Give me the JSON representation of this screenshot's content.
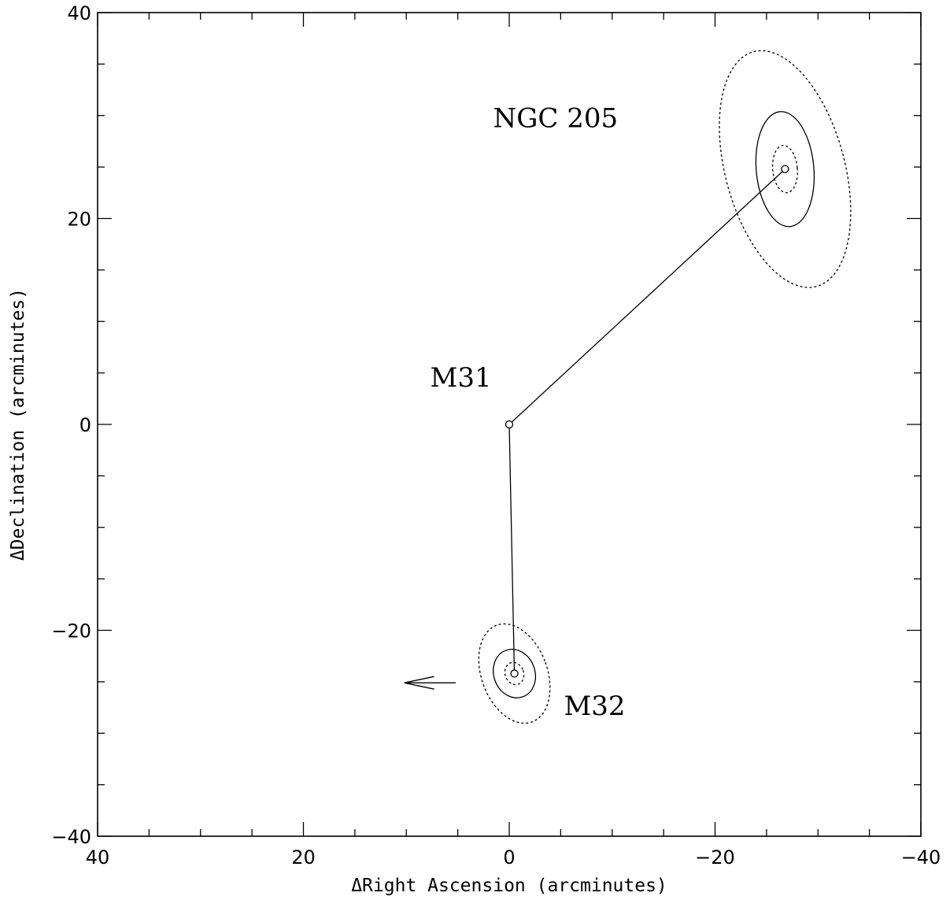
{
  "chart_data": {
    "type": "scatter",
    "title": "",
    "xlabel": "ΔRight Ascension (arcminutes)",
    "ylabel": "ΔDeclination (arcminutes)",
    "xlim": [
      40,
      -40
    ],
    "ylim": [
      -40,
      40
    ],
    "x_major_ticks": [
      40,
      20,
      0,
      -20,
      -40
    ],
    "x_tick_labels": [
      "40",
      "20",
      "0",
      "−20",
      "−40"
    ],
    "y_major_ticks": [
      -40,
      -20,
      0,
      20,
      40
    ],
    "y_tick_labels": [
      "−40",
      "−20",
      "0",
      "20",
      "40"
    ],
    "minor_tick_step": 5,
    "grid": false,
    "center": {
      "name": "M31",
      "x": 0,
      "y": 0,
      "label_x": 4.7,
      "label_y": 4.6
    },
    "galaxies": [
      {
        "name": "NGC 205",
        "x": -26.8,
        "y": 24.8,
        "label_x": -4.5,
        "label_y": 29.8,
        "isophotes": [
          {
            "style": "dotted",
            "a": 11.8,
            "b": 5.8,
            "angle": -15
          },
          {
            "style": "solid",
            "a": 5.6,
            "b": 2.8,
            "angle": -5
          },
          {
            "style": "dotted",
            "a": 2.3,
            "b": 1.2,
            "angle": -5
          }
        ]
      },
      {
        "name": "M32",
        "x": -0.5,
        "y": -24.2,
        "label_x": -8.3,
        "label_y": -27.3,
        "isophotes": [
          {
            "style": "dotted",
            "a": 5.0,
            "b": 3.2,
            "angle": -20
          },
          {
            "style": "solid",
            "a": 2.4,
            "b": 2.0,
            "angle": -20
          },
          {
            "style": "dotted",
            "a": 1.1,
            "b": 0.9,
            "angle": -20
          }
        ]
      }
    ],
    "arrow": {
      "x_start": 5.2,
      "x_end": 10.2,
      "y": -25.1
    }
  }
}
